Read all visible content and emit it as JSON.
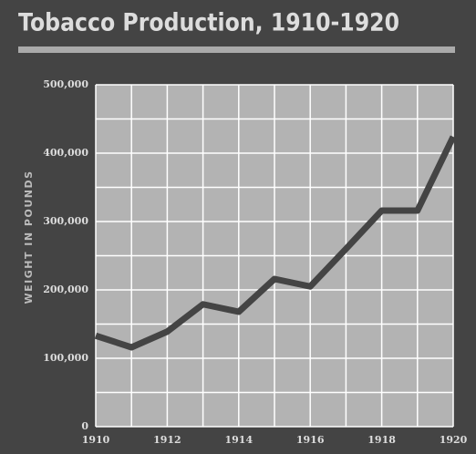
{
  "chart_data": {
    "type": "line",
    "title": "Tobacco Production, 1910-1920",
    "y_label": "WEIGHT IN POUNDS",
    "x": [
      1910,
      1911,
      1912,
      1913,
      1914,
      1915,
      1916,
      1917,
      1918,
      1919,
      1920
    ],
    "values": [
      133000,
      116000,
      139000,
      179000,
      168000,
      216000,
      205000,
      260000,
      316000,
      316000,
      424000
    ],
    "color": "#444444",
    "xlim": [
      1910,
      1920
    ],
    "xticks": [
      1910,
      1912,
      1914,
      1916,
      1918,
      1920
    ],
    "xticks_minor": [
      1911,
      1913,
      1915,
      1917,
      1919
    ],
    "ylim": [
      0,
      500000
    ],
    "yticks": [
      0,
      {
        "value": 100000,
        "label": "100,000"
      },
      {
        "value": 200000,
        "label": "200,000"
      },
      {
        "value": 300000,
        "label": "300,000"
      },
      {
        "value": 400000,
        "label": "400,000"
      },
      {
        "value": 500000,
        "label": "500,000"
      }
    ],
    "yticks_minor": [
      50000,
      150000,
      250000,
      350000,
      450000
    ],
    "grid": true
  }
}
